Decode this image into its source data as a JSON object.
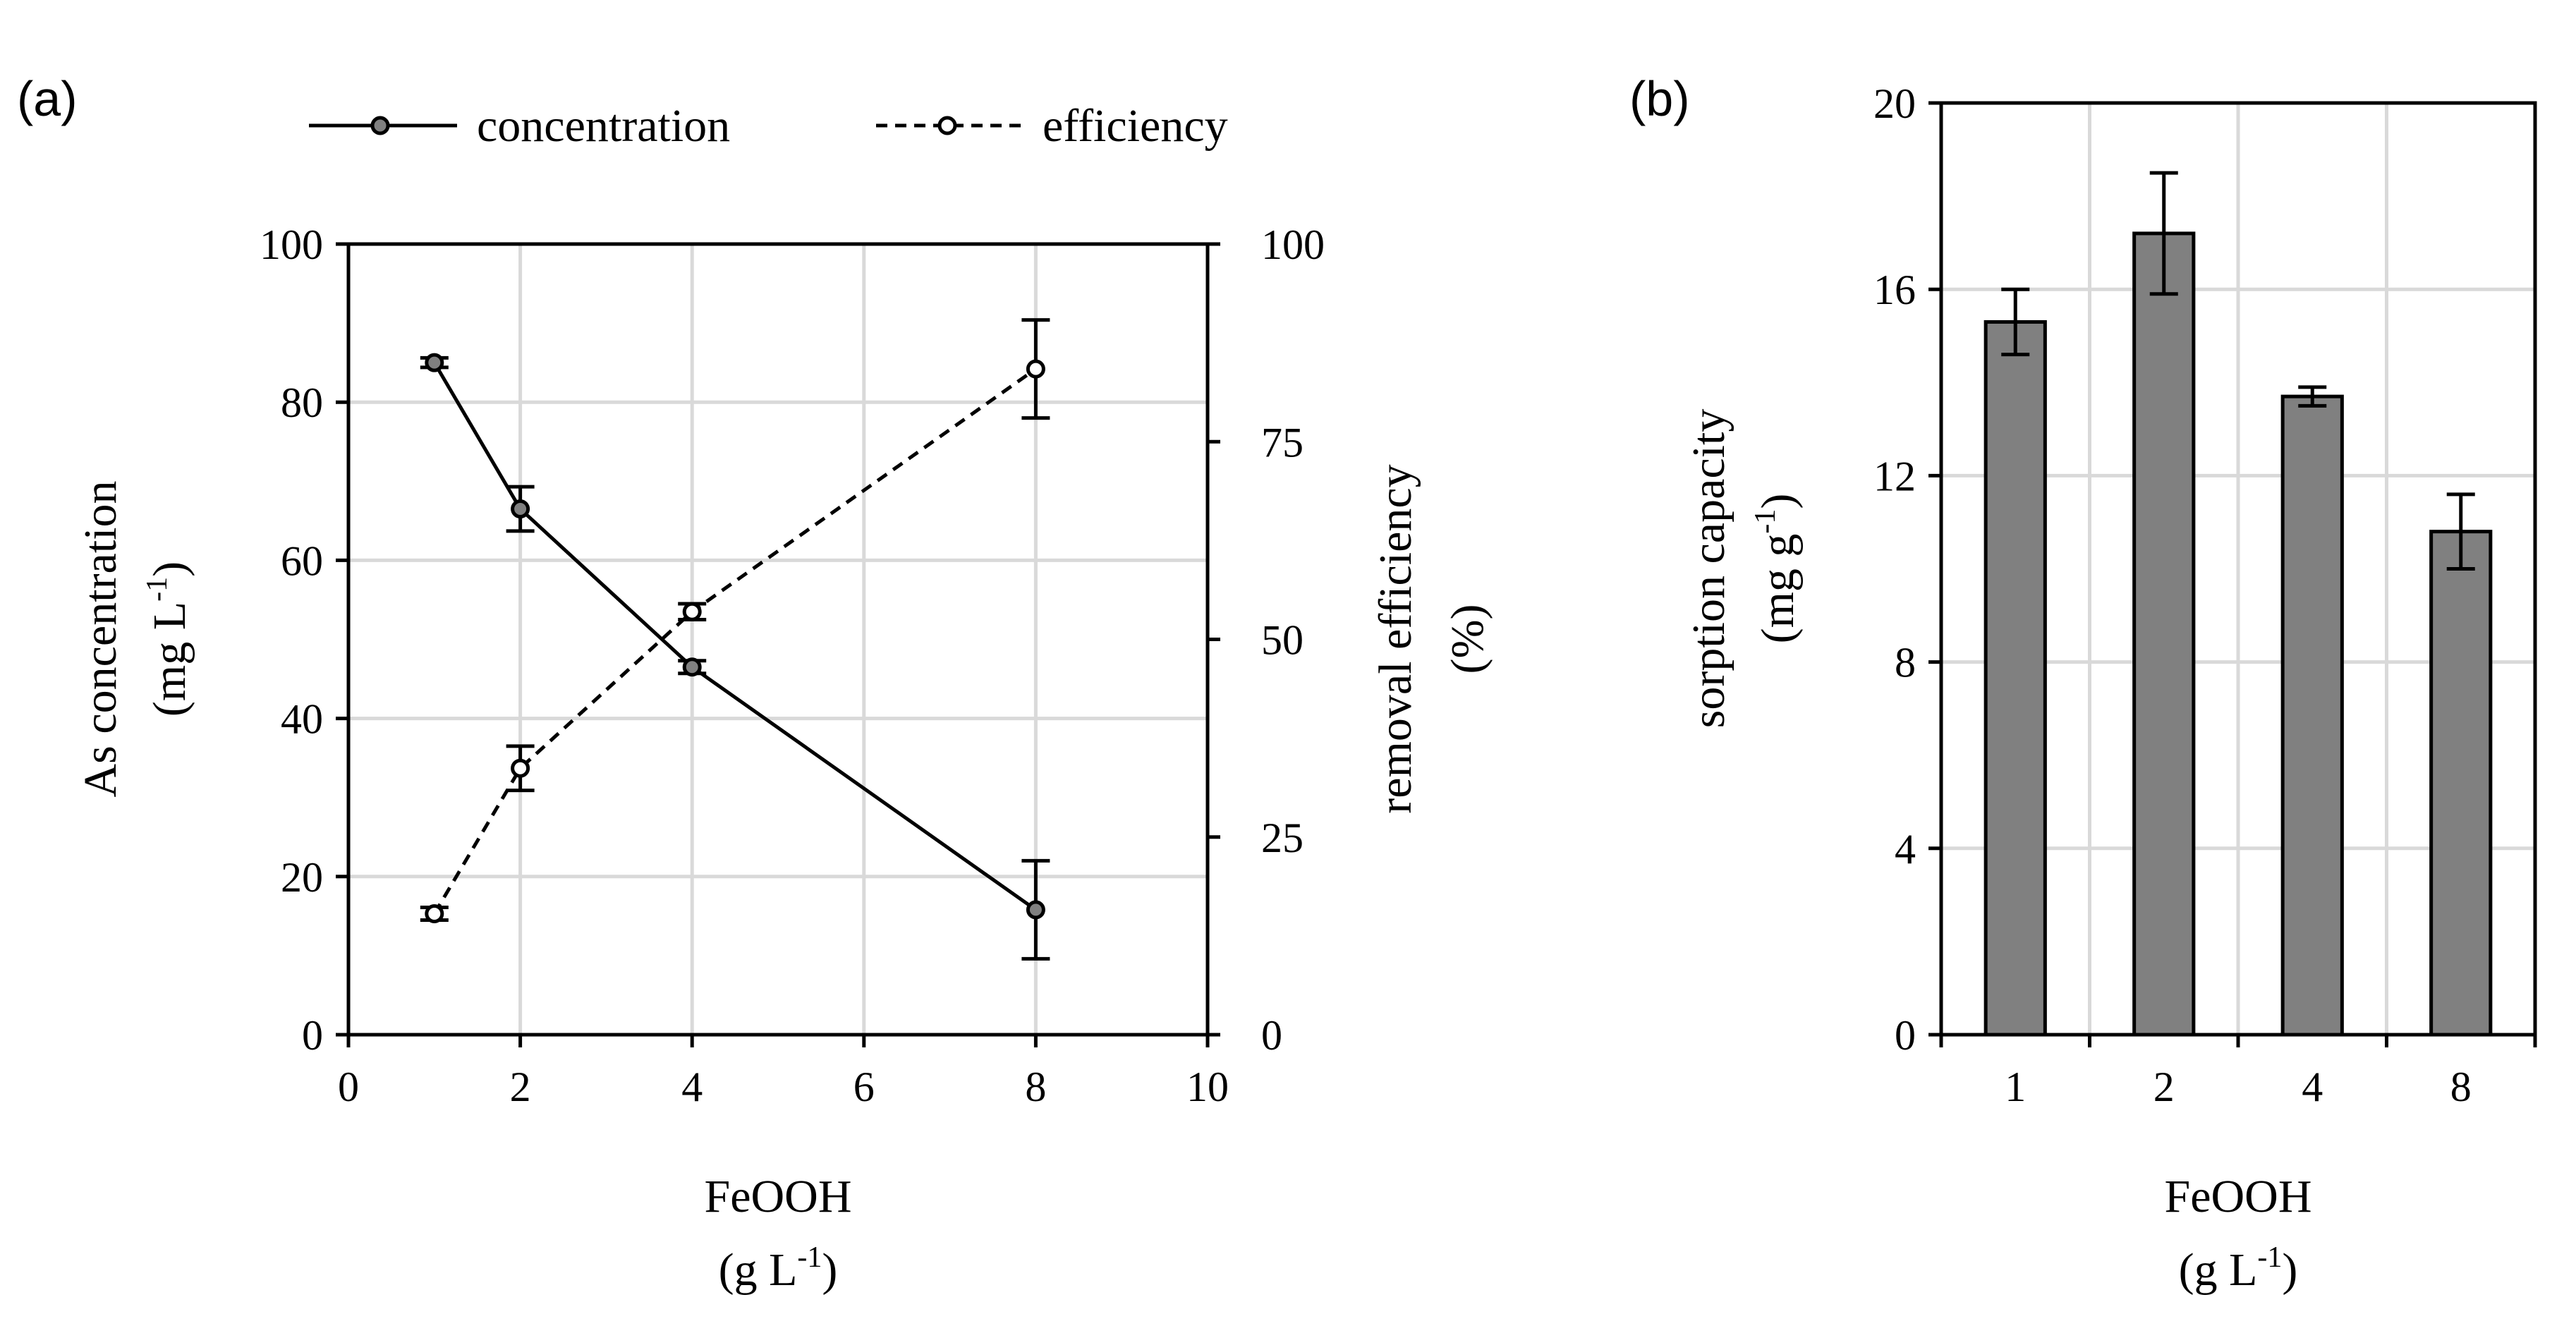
{
  "chart_data": [
    {
      "type": "line",
      "panel_label": "(a)",
      "title": "",
      "xlabel_line1": "FeOOH",
      "xlabel_line2": "(g L-1)",
      "ylabel_left_line1": "As concentration",
      "ylabel_left_line2": "(mg L-1)",
      "ylabel_right_line1": "removal efficiency",
      "ylabel_right_line2": "(%)",
      "xlim": [
        0,
        10
      ],
      "ylim_left": [
        0,
        100
      ],
      "ylim_right": [
        0,
        100
      ],
      "xticks": [
        "0",
        "2",
        "4",
        "6",
        "8",
        "10"
      ],
      "yticks_left": [
        "0",
        "20",
        "40",
        "60",
        "80",
        "100"
      ],
      "yticks_right": [
        "0",
        "25",
        "50",
        "75",
        "100"
      ],
      "grid": true,
      "legend_position": "top",
      "series": [
        {
          "name": "concentration",
          "axis": "left",
          "line_style": "solid",
          "x": [
            1,
            2,
            4,
            8
          ],
          "y": [
            85.0,
            66.5,
            46.5,
            15.8
          ],
          "err": [
            0.6,
            2.8,
            0.8,
            6.2
          ]
        },
        {
          "name": "efficiency",
          "axis": "right",
          "line_style": "dashed",
          "x": [
            1,
            2,
            4,
            8
          ],
          "y": [
            15.3,
            33.7,
            53.5,
            84.2
          ],
          "err": [
            0.8,
            2.8,
            1.0,
            6.2
          ]
        }
      ]
    },
    {
      "type": "bar",
      "panel_label": "(b)",
      "title": "",
      "xlabel_line1": "FeOOH",
      "xlabel_line2": "(g L-1)",
      "ylabel_line1": "sorption capacity",
      "ylabel_line2": "(mg g-1)",
      "categories": [
        "1",
        "2",
        "4",
        "8"
      ],
      "values": [
        15.3,
        17.2,
        13.7,
        10.8
      ],
      "err": [
        0.7,
        1.3,
        0.2,
        0.8
      ],
      "ylim": [
        0,
        20
      ],
      "yticks": [
        "0",
        "4",
        "8",
        "12",
        "16",
        "20"
      ],
      "grid": true,
      "bar_color": "#808080"
    }
  ]
}
